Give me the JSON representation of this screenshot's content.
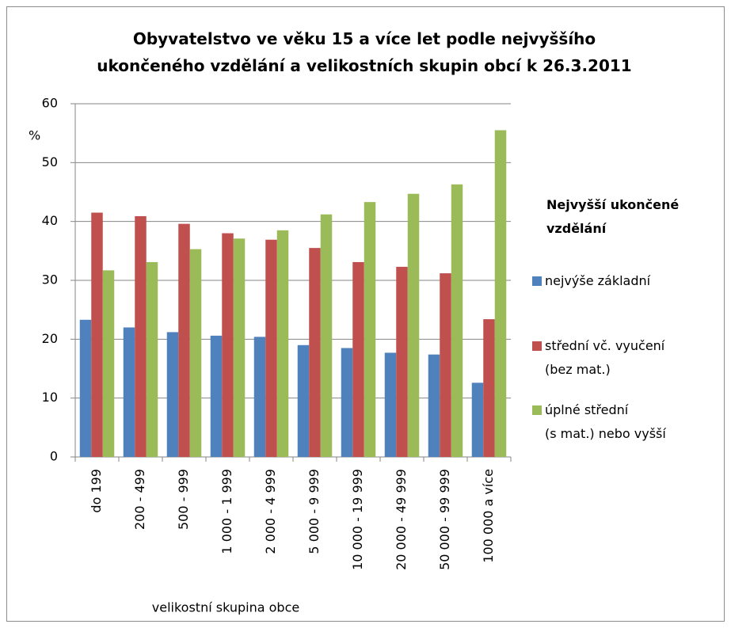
{
  "chart_data": {
    "type": "bar",
    "title": "Obyvatelstvo ve věku 15  a více let podle nejvyššího\nukončeného vzdělání a velikostních skupin obcí k 26.3.2011",
    "y_label": "%",
    "x_label": "velikostní skupina obce",
    "legend_title": "Nejvyšší ukončené\nvzdělání",
    "categories": [
      "do 199",
      "200 - 499",
      "500 - 999",
      "1 000 - 1 999",
      "2 000 - 4 999",
      "5 000 - 9 999",
      "10 000 - 19 999",
      "20 000 - 49 999",
      "50 000 - 99 999",
      "100 000 a více"
    ],
    "series": [
      {
        "name": "nejvýše základní",
        "color": "#4f81bd",
        "values": [
          23.3,
          22,
          21.2,
          20.6,
          20.4,
          19,
          18.5,
          17.7,
          17.4,
          12.6
        ]
      },
      {
        "name": "střední vč. vyučení\n(bez mat.)",
        "color": "#c0504d",
        "values": [
          41.5,
          40.9,
          39.6,
          38,
          36.9,
          35.5,
          33.1,
          32.3,
          31.2,
          23.4
        ]
      },
      {
        "name": "úplné střední\n(s mat.)  nebo vyšší",
        "color": "#9bbb59",
        "values": [
          31.7,
          33.1,
          35.3,
          37.1,
          38.5,
          41.2,
          43.3,
          44.7,
          46.3,
          55.5
        ]
      }
    ],
    "ylim": [
      0,
      60
    ],
    "yticks": [
      0,
      10,
      20,
      30,
      40,
      50,
      60
    ],
    "grid": true,
    "legend": "right"
  }
}
